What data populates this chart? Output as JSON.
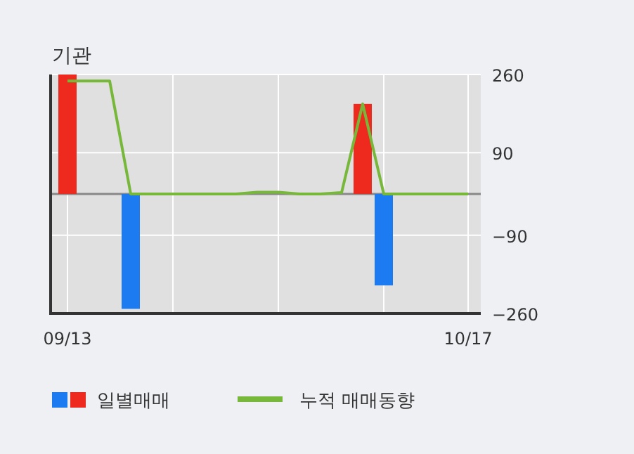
{
  "chart_data": {
    "type": "bar",
    "title": "기관",
    "categories": [
      "09/13",
      null,
      null,
      null,
      null,
      null,
      null,
      null,
      null,
      null,
      null,
      null,
      null,
      null,
      null,
      null,
      null,
      null,
      null,
      "10/17"
    ],
    "series": [
      {
        "name": "일별매매",
        "colors": [
          "#ee2a1e",
          "#ee2a1e",
          "#ee2a1e",
          "#1c7bf0",
          "#ee2a1e",
          "#ee2a1e",
          "#ee2a1e",
          "#ee2a1e",
          "#ee2a1e",
          "#ee2a1e",
          "#ee2a1e",
          "#ee2a1e",
          "#ee2a1e",
          "#ee2a1e",
          "#ee2a1e",
          "#1c7bf0",
          "#ee2a1e",
          "#ee2a1e",
          "#ee2a1e",
          "#ee2a1e"
        ],
        "values": [
          260,
          null,
          null,
          -250,
          null,
          null,
          null,
          null,
          null,
          null,
          null,
          null,
          null,
          null,
          196,
          -199,
          null,
          null,
          null,
          null
        ]
      },
      {
        "name": "누적 매매동향",
        "type": "line",
        "color": "#77b83a",
        "values": [
          246,
          246,
          246,
          0,
          0,
          0,
          0,
          0,
          0,
          4,
          4,
          0,
          0,
          3,
          196,
          0,
          0,
          0,
          0,
          0
        ]
      }
    ],
    "ylim": [
      -260,
      260
    ],
    "yticks": [
      -260,
      -90,
      90,
      260
    ],
    "grid": true,
    "legend": "bottom"
  }
}
